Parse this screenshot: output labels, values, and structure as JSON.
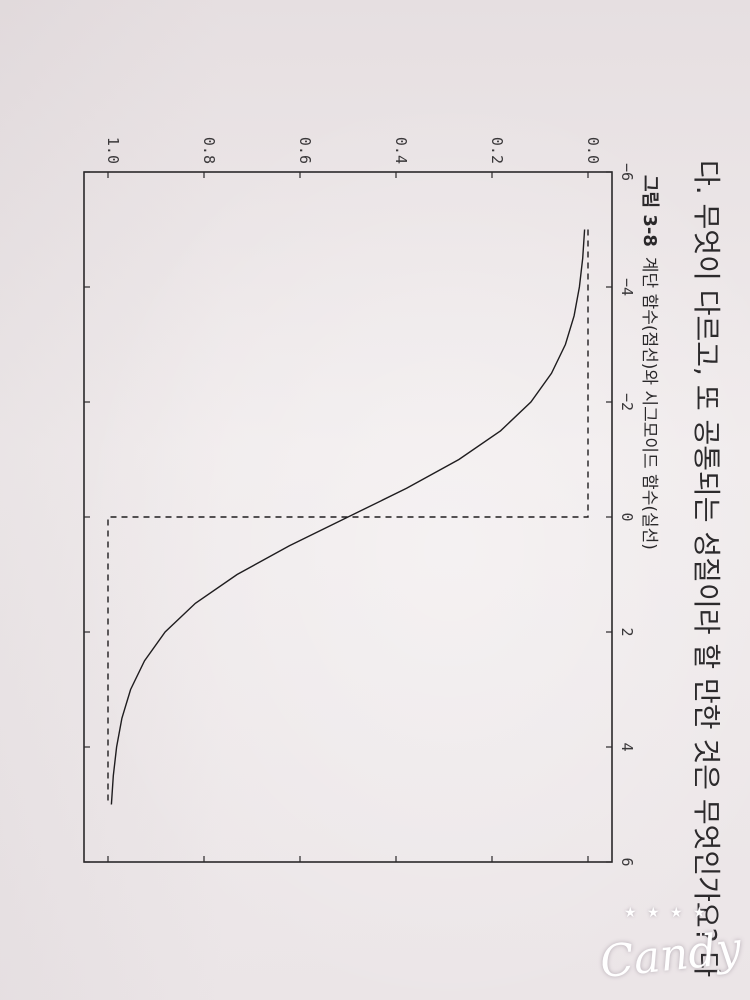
{
  "page_text": "다. 무엇이 다르고, 또 공통되는 성질이라 할 만한 것은 무엇인가요? 다",
  "figure": {
    "label": "그림 3-8",
    "caption": "계단 함수(점선)와 시그모이드 함수(실선)"
  },
  "chart_data": {
    "type": "line",
    "title": "",
    "xlabel": "",
    "ylabel": "",
    "xlim": [
      -6,
      6
    ],
    "ylim": [
      -0.05,
      1.05
    ],
    "x_ticks": [
      "−6",
      "−4",
      "−2",
      "0",
      "2",
      "4",
      "6"
    ],
    "y_ticks": [
      "0.0",
      "0.2",
      "0.4",
      "0.6",
      "0.8",
      "1.0"
    ],
    "grid": false,
    "series": [
      {
        "style": "solid",
        "x": [
          -5,
          -4.5,
          -4,
          -3.5,
          -3,
          -2.5,
          -2,
          -1.5,
          -1,
          -0.5,
          0,
          0.5,
          1,
          1.5,
          2,
          2.5,
          3,
          3.5,
          4,
          4.5,
          5
        ],
        "y": [
          0.007,
          0.011,
          0.018,
          0.029,
          0.047,
          0.076,
          0.119,
          0.182,
          0.269,
          0.378,
          0.5,
          0.622,
          0.731,
          0.818,
          0.881,
          0.924,
          0.953,
          0.971,
          0.982,
          0.989,
          0.993
        ]
      },
      {
        "style": "dashed",
        "x": [
          -5,
          0,
          0,
          5
        ],
        "y": [
          0,
          0,
          1,
          1
        ]
      }
    ]
  },
  "watermark": {
    "text": "Candy",
    "stars": "★ ★ ★ ★"
  }
}
